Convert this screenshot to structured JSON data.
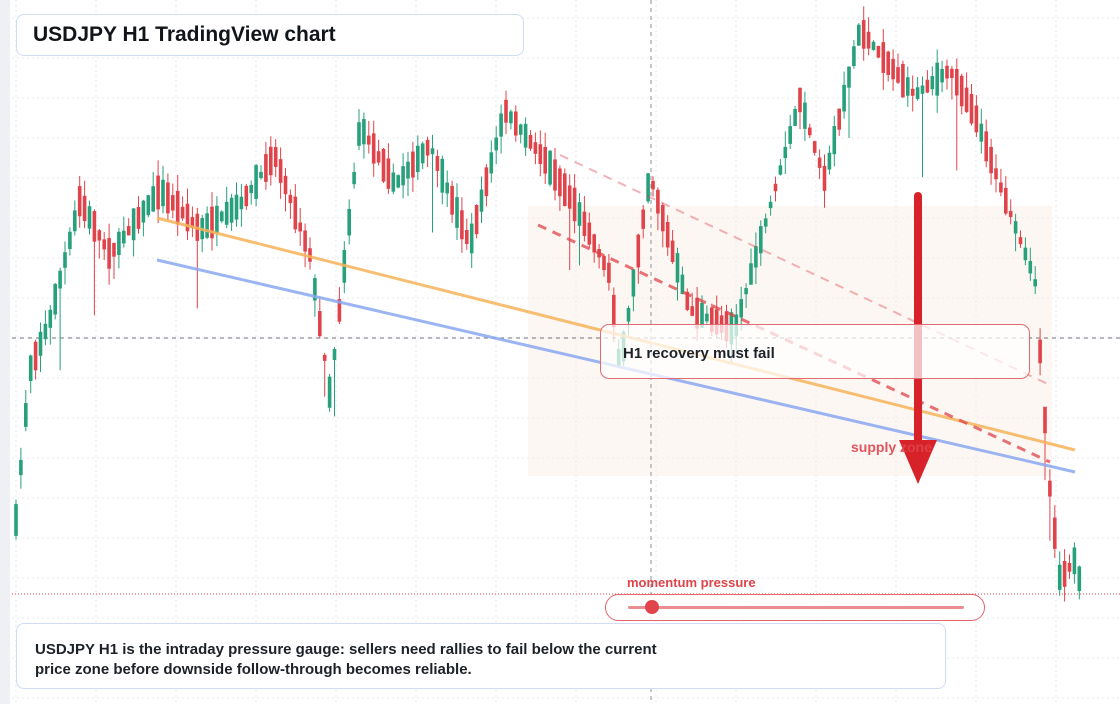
{
  "header": {
    "title": "USDJPY H1 TradingView chart"
  },
  "callout": {
    "text": "H1 recovery must fail"
  },
  "zone": {
    "label": "supply zone"
  },
  "momentum": {
    "label": "momentum pressure",
    "level": 0.07
  },
  "caption": {
    "text": "USDJPY H1 is the intraday pressure gauge: sellers need rallies to fail below the current price zone before downside follow-through becomes reliable."
  },
  "colors": {
    "bull": "#26a17b",
    "bear": "#e0434a",
    "trendline_orange": "#f6b35a",
    "trendline_blue": "#8aa8f0",
    "accent_red": "#d8222a"
  },
  "chart_data": {
    "type": "candlestick",
    "timeframe": "H1",
    "symbol": "USDJPY",
    "grid": true,
    "axes_visible": false,
    "trend": [
      "up",
      "down",
      "up",
      "down",
      "up",
      "down",
      "down",
      "up",
      "up",
      "down",
      "down"
    ],
    "note": "candles rendered from a trend path; price values not labeled on the screenshot"
  }
}
